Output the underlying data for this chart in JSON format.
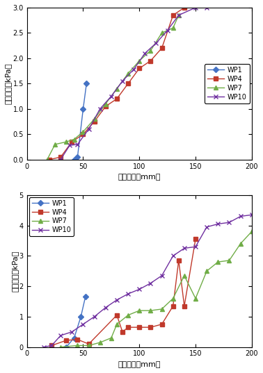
{
  "case1": {
    "WP1": {
      "x": [
        42,
        45,
        50,
        53
      ],
      "y": [
        0.0,
        0.05,
        1.0,
        1.5
      ],
      "color": "#4472C4",
      "marker": "D",
      "markersize": 4
    },
    "WP4": {
      "x": [
        20,
        30,
        40,
        50,
        60,
        70,
        80,
        90,
        100,
        110,
        120,
        130,
        140
      ],
      "y": [
        0.0,
        0.05,
        0.35,
        0.5,
        0.75,
        1.05,
        1.2,
        1.5,
        1.8,
        1.95,
        2.2,
        2.85,
        3.0
      ],
      "color": "#C0392B",
      "marker": "s",
      "markersize": 4
    },
    "WP7": {
      "x": [
        18,
        25,
        35,
        42,
        50,
        60,
        70,
        80,
        90,
        100,
        110,
        120,
        130,
        135
      ],
      "y": [
        0.0,
        0.3,
        0.35,
        0.4,
        0.55,
        0.8,
        1.1,
        1.4,
        1.7,
        1.95,
        2.15,
        2.5,
        2.6,
        2.85
      ],
      "color": "#70AD47",
      "marker": "^",
      "markersize": 4
    },
    "WP10": {
      "x": [
        30,
        38,
        45,
        55,
        65,
        75,
        85,
        95,
        105,
        115,
        125,
        135,
        150,
        160
      ],
      "y": [
        0.0,
        0.28,
        0.3,
        0.6,
        1.0,
        1.25,
        1.55,
        1.78,
        2.1,
        2.3,
        2.55,
        2.85,
        3.0,
        3.0
      ],
      "color": "#7030A0",
      "marker": "x",
      "markersize": 5
    }
  },
  "case2": {
    "WP1": {
      "x": [
        35,
        42,
        48,
        52
      ],
      "y": [
        0.0,
        0.3,
        1.0,
        1.65
      ],
      "color": "#4472C4",
      "marker": "D",
      "markersize": 4
    },
    "WP4": {
      "x": [
        22,
        35,
        45,
        55,
        80,
        85,
        90,
        100,
        110,
        120,
        130,
        135,
        140,
        150
      ],
      "y": [
        0.05,
        0.22,
        0.25,
        0.1,
        1.05,
        0.5,
        0.65,
        0.65,
        0.65,
        0.75,
        1.35,
        2.85,
        1.35,
        3.55
      ],
      "color": "#C0392B",
      "marker": "s",
      "markersize": 4
    },
    "WP7": {
      "x": [
        30,
        45,
        55,
        65,
        75,
        80,
        90,
        100,
        110,
        120,
        130,
        140,
        150,
        160,
        170,
        180,
        190,
        200
      ],
      "y": [
        0.0,
        0.05,
        0.05,
        0.15,
        0.3,
        0.75,
        1.05,
        1.2,
        1.2,
        1.25,
        1.6,
        2.35,
        1.6,
        2.5,
        2.8,
        2.85,
        3.4,
        3.8
      ],
      "color": "#70AD47",
      "marker": "^",
      "markersize": 4
    },
    "WP10": {
      "x": [
        15,
        22,
        30,
        40,
        50,
        60,
        70,
        80,
        90,
        100,
        110,
        120,
        130,
        140,
        150,
        160,
        170,
        180,
        190,
        200
      ],
      "y": [
        0.0,
        0.05,
        0.38,
        0.5,
        0.75,
        1.0,
        1.3,
        1.55,
        1.75,
        1.9,
        2.1,
        2.35,
        3.0,
        3.25,
        3.3,
        3.95,
        4.05,
        4.1,
        4.3,
        4.35
      ],
      "color": "#7030A0",
      "marker": "x",
      "markersize": 5
    }
  },
  "xlabel": "土被り厚（mm）",
  "ylabel": "有効応力（kPa）",
  "case1_ylim": [
    0,
    3
  ],
  "case2_ylim": [
    0,
    5
  ],
  "xlim": [
    0,
    200
  ],
  "xticks": [
    0,
    50,
    100,
    150,
    200
  ],
  "case1_yticks": [
    0,
    0.5,
    1.0,
    1.5,
    2.0,
    2.5,
    3.0
  ],
  "case2_yticks": [
    0,
    1,
    2,
    3,
    4,
    5
  ],
  "legend_order": [
    "WP1",
    "WP4",
    "WP7",
    "WP10"
  ]
}
